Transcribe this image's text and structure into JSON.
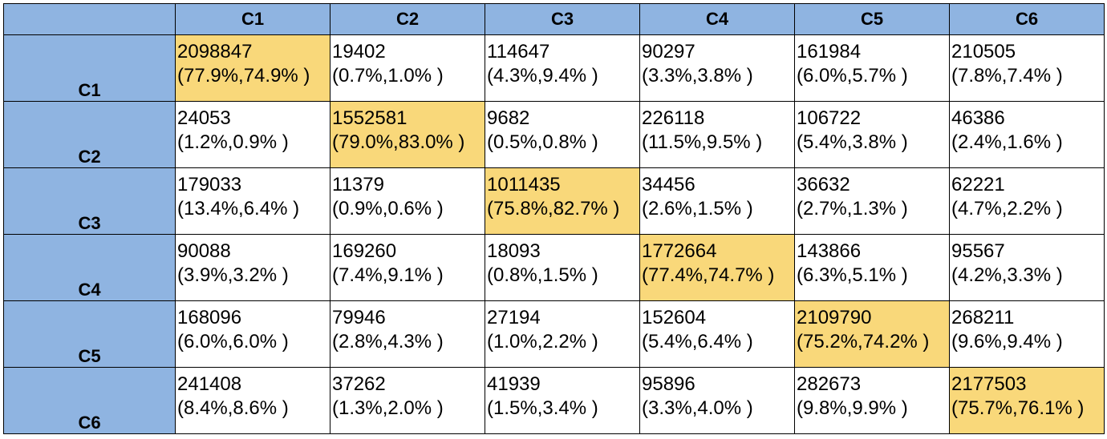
{
  "columns": [
    "C1",
    "C2",
    "C3",
    "C4",
    "C5",
    "C6"
  ],
  "colors": {
    "header": "#8fb4e1",
    "diagonal": "#f9d87a"
  },
  "rows": [
    {
      "label": "C1",
      "cells": [
        {
          "count": "2098847",
          "pct": "(77.9%,74.9% )"
        },
        {
          "count": "19402",
          "pct": "(0.7%,1.0% )"
        },
        {
          "count": "114647",
          "pct": "(4.3%,9.4% )"
        },
        {
          "count": "90297",
          "pct": "(3.3%,3.8% )"
        },
        {
          "count": "161984",
          "pct": "(6.0%,5.7% )"
        },
        {
          "count": "210505",
          "pct": "(7.8%,7.4% )"
        }
      ]
    },
    {
      "label": "C2",
      "cells": [
        {
          "count": "24053",
          "pct": "(1.2%,0.9% )"
        },
        {
          "count": "1552581",
          "pct": "(79.0%,83.0% )"
        },
        {
          "count": "9682",
          "pct": "(0.5%,0.8% )"
        },
        {
          "count": "226118",
          "pct": "(11.5%,9.5% )"
        },
        {
          "count": "106722",
          "pct": "(5.4%,3.8% )"
        },
        {
          "count": "46386",
          "pct": "(2.4%,1.6% )"
        }
      ]
    },
    {
      "label": "C3",
      "cells": [
        {
          "count": "179033",
          "pct": "(13.4%,6.4% )"
        },
        {
          "count": "11379",
          "pct": "(0.9%,0.6% )"
        },
        {
          "count": "1011435",
          "pct": "(75.8%,82.7% )"
        },
        {
          "count": "34456",
          "pct": "(2.6%,1.5% )"
        },
        {
          "count": "36632",
          "pct": "(2.7%,1.3% )"
        },
        {
          "count": "62221",
          "pct": "(4.7%,2.2% )"
        }
      ]
    },
    {
      "label": "C4",
      "cells": [
        {
          "count": "90088",
          "pct": "(3.9%,3.2% )"
        },
        {
          "count": "169260",
          "pct": "(7.4%,9.1% )"
        },
        {
          "count": "18093",
          "pct": "(0.8%,1.5% )"
        },
        {
          "count": "1772664",
          "pct": "(77.4%,74.7% )"
        },
        {
          "count": "143866",
          "pct": "(6.3%,5.1% )"
        },
        {
          "count": "95567",
          "pct": "(4.2%,3.3% )"
        }
      ]
    },
    {
      "label": "C5",
      "cells": [
        {
          "count": "168096",
          "pct": "(6.0%,6.0% )"
        },
        {
          "count": "79946",
          "pct": "(2.8%,4.3% )"
        },
        {
          "count": "27194",
          "pct": "(1.0%,2.2% )"
        },
        {
          "count": "152604",
          "pct": "(5.4%,6.4% )"
        },
        {
          "count": "2109790",
          "pct": "(75.2%,74.2% )"
        },
        {
          "count": "268211",
          "pct": "(9.6%,9.4% )"
        }
      ]
    },
    {
      "label": "C6",
      "cells": [
        {
          "count": "241408",
          "pct": "(8.4%,8.6% )"
        },
        {
          "count": "37262",
          "pct": "(1.3%,2.0% )"
        },
        {
          "count": "41939",
          "pct": "(1.5%,3.4% )"
        },
        {
          "count": "95896",
          "pct": "(3.3%,4.0% )"
        },
        {
          "count": "282673",
          "pct": "(9.8%,9.9% )"
        },
        {
          "count": "2177503",
          "pct": "(75.7%,76.1% )"
        }
      ]
    }
  ]
}
